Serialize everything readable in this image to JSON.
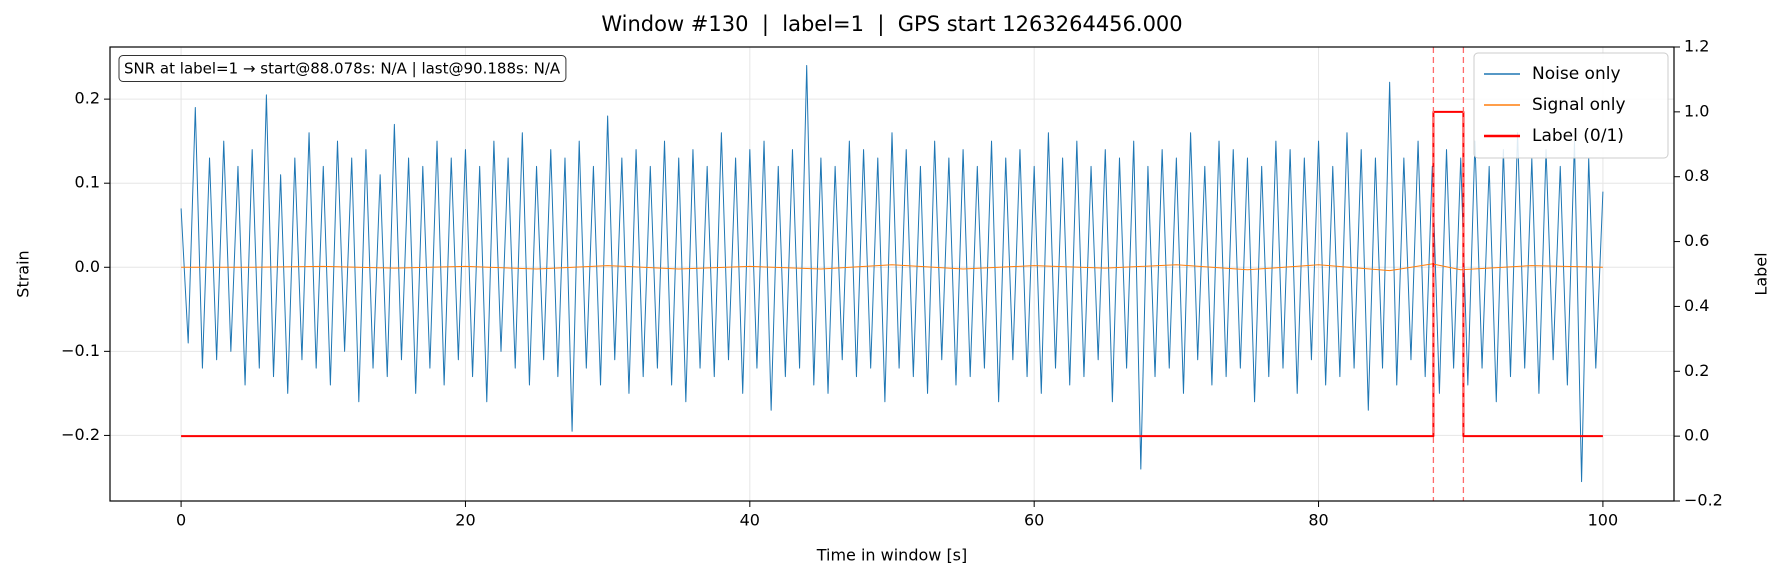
{
  "chart_data": {
    "type": "line",
    "title": "Window #130  |  label=1  |  GPS start 1263264456.000",
    "xlabel": "Time in window [s]",
    "ylabel": "Strain",
    "y2label": "Label",
    "annotation": "SNR at label=1 → start@88.078s: N/A | last@90.188s: N/A",
    "xlim": [
      -5,
      105
    ],
    "ylim": [
      -0.278,
      0.262
    ],
    "y2lim": [
      -0.2,
      1.2
    ],
    "xticks": [
      0,
      20,
      40,
      60,
      80,
      100
    ],
    "yticks": [
      {
        "value": -0.2,
        "label": "−0.2"
      },
      {
        "value": -0.1,
        "label": "−0.1"
      },
      {
        "value": 0,
        "label": "0.0"
      },
      0.1,
      0.2
    ],
    "y2ticks": [
      {
        "value": -0.2,
        "label": "−0.2"
      },
      {
        "value": 0,
        "label": "0.0"
      },
      0.2,
      0.4,
      0.6,
      0.8,
      {
        "value": 1,
        "label": "1.0"
      },
      1.2
    ],
    "grid": true,
    "legend": "upper right",
    "vlines": [
      88.078,
      90.188
    ],
    "vline_color": "#ff6b6b",
    "series": [
      {
        "name": "Noise only",
        "color": "#1f77b4",
        "width": 1,
        "x": [
          0,
          0.5,
          1,
          1.5,
          2,
          2.5,
          3,
          3.5,
          4,
          4.5,
          5,
          5.5,
          6,
          6.5,
          7,
          7.5,
          8,
          8.5,
          9,
          9.5,
          10,
          10.5,
          11,
          11.5,
          12,
          12.5,
          13,
          13.5,
          14,
          14.5,
          15,
          15.5,
          16,
          16.5,
          17,
          17.5,
          18,
          18.5,
          19,
          19.5,
          20,
          20.5,
          21,
          21.5,
          22,
          22.5,
          23,
          23.5,
          24,
          24.5,
          25,
          25.5,
          26,
          26.5,
          27,
          27.5,
          28,
          28.5,
          29,
          29.5,
          30,
          30.5,
          31,
          31.5,
          32,
          32.5,
          33,
          33.5,
          34,
          34.5,
          35,
          35.5,
          36,
          36.5,
          37,
          37.5,
          38,
          38.5,
          39,
          39.5,
          40,
          40.5,
          41,
          41.5,
          42,
          42.5,
          43,
          43.5,
          44,
          44.5,
          45,
          45.5,
          46,
          46.5,
          47,
          47.5,
          48,
          48.5,
          49,
          49.5,
          50,
          50.5,
          51,
          51.5,
          52,
          52.5,
          53,
          53.5,
          54,
          54.5,
          55,
          55.5,
          56,
          56.5,
          57,
          57.5,
          58,
          58.5,
          59,
          59.5,
          60,
          60.5,
          61,
          61.5,
          62,
          62.5,
          63,
          63.5,
          64,
          64.5,
          65,
          65.5,
          66,
          66.5,
          67,
          67.5,
          68,
          68.5,
          69,
          69.5,
          70,
          70.5,
          71,
          71.5,
          72,
          72.5,
          73,
          73.5,
          74,
          74.5,
          75,
          75.5,
          76,
          76.5,
          77,
          77.5,
          78,
          78.5,
          79,
          79.5,
          80,
          80.5,
          81,
          81.5,
          82,
          82.5,
          83,
          83.5,
          84,
          84.5,
          85,
          85.5,
          86,
          86.5,
          87,
          87.5,
          88,
          88.5,
          89,
          89.5,
          90,
          90.5,
          91,
          91.5,
          92,
          92.5,
          93,
          93.5,
          94,
          94.5,
          95,
          95.5,
          96,
          96.5,
          97,
          97.5,
          98,
          98.5,
          99,
          99.5,
          100
        ],
        "values": [
          0.07,
          -0.09,
          0.19,
          -0.12,
          0.13,
          -0.11,
          0.15,
          -0.1,
          0.12,
          -0.14,
          0.14,
          -0.12,
          0.205,
          -0.13,
          0.11,
          -0.15,
          0.13,
          -0.11,
          0.16,
          -0.12,
          0.12,
          -0.14,
          0.15,
          -0.1,
          0.13,
          -0.16,
          0.14,
          -0.12,
          0.11,
          -0.13,
          0.17,
          -0.11,
          0.13,
          -0.15,
          0.12,
          -0.12,
          0.15,
          -0.14,
          0.13,
          -0.11,
          0.14,
          -0.13,
          0.12,
          -0.16,
          0.15,
          -0.1,
          0.13,
          -0.12,
          0.16,
          -0.14,
          0.12,
          -0.11,
          0.14,
          -0.13,
          0.13,
          -0.195,
          0.15,
          -0.12,
          0.12,
          -0.14,
          0.18,
          -0.11,
          0.13,
          -0.15,
          0.14,
          -0.13,
          0.12,
          -0.12,
          0.15,
          -0.14,
          0.13,
          -0.16,
          0.14,
          -0.12,
          0.12,
          -0.13,
          0.16,
          -0.11,
          0.13,
          -0.15,
          0.14,
          -0.12,
          0.15,
          -0.17,
          0.12,
          -0.13,
          0.14,
          -0.12,
          0.24,
          -0.14,
          0.13,
          -0.15,
          0.12,
          -0.11,
          0.15,
          -0.13,
          0.14,
          -0.12,
          0.13,
          -0.16,
          0.16,
          -0.12,
          0.14,
          -0.13,
          0.12,
          -0.15,
          0.15,
          -0.11,
          0.13,
          -0.14,
          0.14,
          -0.13,
          0.12,
          -0.12,
          0.15,
          -0.16,
          0.13,
          -0.11,
          0.14,
          -0.13,
          0.12,
          -0.15,
          0.16,
          -0.12,
          0.13,
          -0.14,
          0.15,
          -0.13,
          0.12,
          -0.11,
          0.14,
          -0.16,
          0.13,
          -0.12,
          0.15,
          -0.24,
          0.12,
          -0.13,
          0.14,
          -0.12,
          0.13,
          -0.15,
          0.16,
          -0.11,
          0.12,
          -0.14,
          0.15,
          -0.13,
          0.14,
          -0.12,
          0.13,
          -0.16,
          0.12,
          -0.13,
          0.15,
          -0.12,
          0.14,
          -0.15,
          0.13,
          -0.11,
          0.15,
          -0.14,
          0.12,
          -0.13,
          0.16,
          -0.12,
          0.14,
          -0.17,
          0.13,
          -0.12,
          0.22,
          -0.14,
          0.13,
          -0.11,
          0.15,
          -0.13,
          0.12,
          -0.15,
          0.14,
          -0.12,
          0.13,
          -0.14,
          0.15,
          -0.12,
          0.12,
          -0.16,
          0.14,
          -0.13,
          0.16,
          -0.12,
          0.13,
          -0.15,
          0.14,
          -0.11,
          0.12,
          -0.14,
          0.15,
          -0.255,
          0.13,
          -0.12,
          0.09
        ]
      },
      {
        "name": "Signal only",
        "color": "#ff7f0e",
        "width": 1,
        "x": [
          0,
          5,
          10,
          15,
          20,
          25,
          30,
          35,
          40,
          45,
          50,
          55,
          60,
          65,
          70,
          75,
          80,
          85,
          88,
          90,
          95,
          100
        ],
        "values": [
          0,
          0,
          0.001,
          -0.001,
          0.001,
          -0.002,
          0.002,
          -0.002,
          0.001,
          -0.002,
          0.003,
          -0.002,
          0.002,
          -0.001,
          0.003,
          -0.003,
          0.003,
          -0.004,
          0.004,
          -0.003,
          0.002,
          0
        ]
      },
      {
        "name": "Label (0/1)",
        "color": "#ff0000",
        "width": 2,
        "axis": "y2",
        "x": [
          0,
          88.078,
          88.078,
          90.188,
          90.188,
          100
        ],
        "values": [
          0,
          0,
          1,
          1,
          0,
          0
        ]
      }
    ]
  }
}
